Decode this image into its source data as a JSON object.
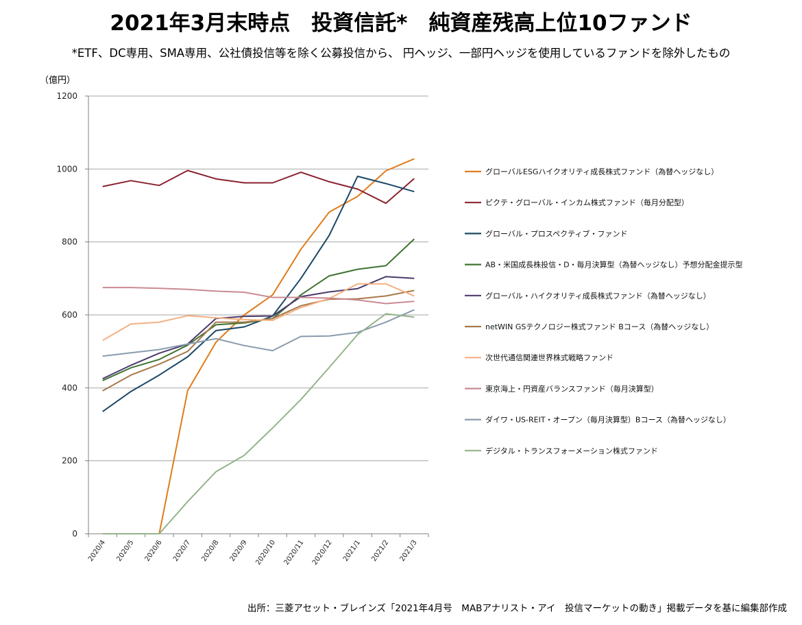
{
  "title": "2021年3月末時点　投資信託*　純資産残高上位10ファンド",
  "subtitle": "*ETF、DC専用、SMA専用、公社債投信等を除く公募投信から、 円ヘッジ、一部円ヘッジを使用しているファンドを除外したもの",
  "unit_label": "（億円）",
  "source": "出所：三菱アセット・ブレインズ「2021年4月号　MABアナリスト・アイ　投信マーケットの動き」掲載データを基に編集部作成",
  "chart_data": {
    "type": "line",
    "x": [
      "2020/4",
      "2020/5",
      "2020/6",
      "2020/7",
      "2020/8",
      "2020/9",
      "2020/10",
      "2020/11",
      "2020/12",
      "2021/1",
      "2021/2",
      "2021/3"
    ],
    "ylim": [
      0,
      1200
    ],
    "yticks": [
      0,
      200,
      400,
      600,
      800,
      1000,
      1200
    ],
    "grid": true,
    "legend_position": "right",
    "series": [
      {
        "name": "グローバルESGハイクオリティ成長株式ファンド（為替ヘッジなし）",
        "color": "#E07B1A",
        "values": [
          0,
          0,
          0,
          392,
          525,
          600,
          655,
          780,
          882,
          925,
          995,
          1028
        ]
      },
      {
        "name": "ピクテ・グローバル・インカム株式ファンド（毎月分配型）",
        "color": "#8B2230",
        "values": [
          952,
          968,
          955,
          996,
          973,
          962,
          962,
          991,
          965,
          945,
          906,
          974
        ]
      },
      {
        "name": "グローバル・プロスペクティブ・ファンド",
        "color": "#1A4766",
        "values": [
          335,
          390,
          435,
          485,
          557,
          567,
          597,
          700,
          818,
          980,
          960,
          938
        ]
      },
      {
        "name": "AB・米国成長株投信・D・毎月決算型（為替ヘッジなし）予想分配金提示型",
        "color": "#3E7330",
        "values": [
          420,
          455,
          478,
          517,
          573,
          578,
          590,
          655,
          707,
          725,
          735,
          808
        ]
      },
      {
        "name": "グローバル・ハイクオリティ成長株式ファンド（為替ヘッジなし）",
        "color": "#4B3A6B",
        "values": [
          425,
          462,
          495,
          520,
          590,
          596,
          597,
          650,
          663,
          672,
          705,
          700
        ]
      },
      {
        "name": "netWIN GSテクノロジー株式ファンド Bコース（為替ヘッジなし）",
        "color": "#A8784A",
        "values": [
          392,
          435,
          465,
          500,
          580,
          580,
          590,
          625,
          643,
          644,
          652,
          667
        ]
      },
      {
        "name": "次世代通信関連世界株式戦略ファンド",
        "color": "#F4B183",
        "values": [
          530,
          575,
          580,
          598,
          592,
          587,
          585,
          620,
          645,
          685,
          685,
          652
        ]
      },
      {
        "name": "東京海上・円資産バランスファンド（毎月決算型）",
        "color": "#C98A93",
        "values": [
          675,
          675,
          673,
          670,
          665,
          662,
          648,
          648,
          646,
          641,
          631,
          637
        ]
      },
      {
        "name": "ダイワ・US-REIT・オープン（毎月決算型）Bコース（為替ヘッジなし）",
        "color": "#8A9BAE",
        "values": [
          487,
          496,
          505,
          520,
          535,
          516,
          502,
          541,
          542,
          552,
          580,
          614
        ]
      },
      {
        "name": "デジタル・トランスフォーメーション株式ファンド",
        "color": "#94B38A",
        "values": [
          0,
          0,
          0,
          88,
          170,
          215,
          290,
          368,
          456,
          546,
          603,
          594
        ]
      }
    ]
  }
}
